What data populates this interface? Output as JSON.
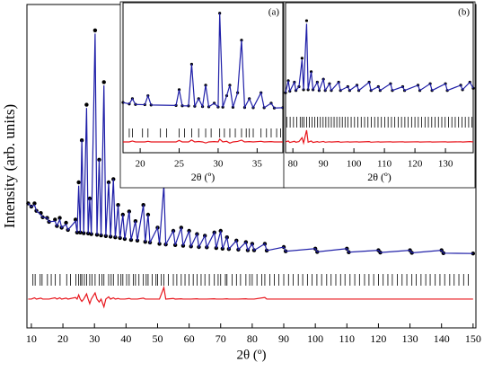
{
  "chart_data": [
    {
      "type": "rietveld",
      "xlabel": "2θ (º)",
      "ylabel": "Intensity (arb. units)",
      "xlim": [
        8.6,
        150.9
      ],
      "ylim": [
        0,
        100
      ],
      "xticks": [
        10,
        20,
        30,
        40,
        50,
        60,
        70,
        80,
        90,
        100,
        110,
        120,
        130,
        140,
        150
      ],
      "x": [
        9,
        10,
        11,
        11.6,
        13,
        13.6,
        15,
        15.6,
        17.5,
        18.1,
        19,
        19.6,
        21,
        21.6,
        24,
        24.5,
        25,
        25.5,
        26,
        26.6,
        27.5,
        28,
        28.5,
        29,
        30.2,
        30.8,
        31.5,
        32.1,
        33,
        33.6,
        34.5,
        35.1,
        36,
        36.6,
        37.5,
        38.1,
        39,
        39.6,
        41,
        41.6,
        43,
        43.6,
        45.5,
        46.1,
        47,
        47.6,
        50,
        50.6,
        52,
        52.6,
        55,
        55.6,
        57.5,
        58.1,
        60,
        60.6,
        62.5,
        63.1,
        65,
        65.6,
        68,
        68.6,
        70,
        70.6,
        72,
        72.6,
        75,
        75.6,
        78,
        78.6,
        80,
        80.6,
        84,
        84.6,
        90,
        90.6,
        100,
        100.6,
        110,
        110.6,
        120,
        120.6,
        130,
        130.6,
        140,
        140.6,
        150
      ],
      "series": [
        {
          "style": "points",
          "color": "#000000",
          "values": [
            38.5,
            37.5,
            38.5,
            36.2,
            35.5,
            34.2,
            34,
            32.8,
            33.5,
            31.5,
            34,
            31,
            32.5,
            30.3,
            33.5,
            29.5,
            45,
            29.5,
            58,
            29.3,
            69,
            29.2,
            40,
            29,
            92,
            28.8,
            52,
            28.6,
            76,
            28.4,
            45,
            28.2,
            46,
            28,
            38,
            27.8,
            35,
            27.5,
            36,
            27.2,
            33,
            27,
            38,
            26.6,
            35,
            26.4,
            31,
            26,
            46,
            25.8,
            30,
            25.6,
            31,
            25.4,
            30,
            25.2,
            29,
            25,
            28.5,
            24.9,
            29.5,
            24.7,
            30,
            24.5,
            28,
            24.4,
            27,
            24.2,
            26.5,
            24,
            26,
            24,
            26,
            23.9,
            25,
            23.7,
            24.5,
            23.5,
            24.5,
            23.4,
            24,
            23.3,
            24,
            23.2,
            24,
            23.1,
            23
          ]
        },
        {
          "style": "line",
          "color": "#1f1fa8",
          "values": [
            38.5,
            37.5,
            38,
            36.2,
            35,
            34.2,
            34,
            32.8,
            33,
            31.5,
            33.5,
            31,
            32,
            30.3,
            33,
            29.5,
            44,
            29.5,
            58,
            29.3,
            68,
            29.2,
            40,
            29,
            91,
            28.8,
            52,
            28.6,
            75,
            28.4,
            45,
            28.2,
            46,
            28,
            38,
            27.8,
            35,
            27.5,
            36,
            27.2,
            33,
            27,
            38,
            26.6,
            35,
            26.4,
            31,
            26,
            44,
            25.8,
            30,
            25.6,
            31,
            25.4,
            30,
            25.2,
            29,
            25,
            28.5,
            24.9,
            29.5,
            24.7,
            30,
            24.5,
            28,
            24.4,
            27,
            24.2,
            26.5,
            24,
            26,
            24,
            26,
            23.9,
            25,
            23.7,
            24.5,
            23.5,
            24.5,
            23.4,
            24,
            23.3,
            24,
            23.2,
            24,
            23.1,
            23
          ]
        },
        {
          "style": "line",
          "color": "#e8141b",
          "values": [
            8.9,
            8.9,
            9.3,
            8.9,
            9.2,
            8.9,
            8.9,
            8.9,
            9.3,
            8.9,
            9.3,
            8.9,
            9.2,
            8.9,
            9.4,
            8.9,
            10.2,
            8.9,
            8.2,
            8.9,
            10.5,
            8.9,
            7.5,
            8.9,
            10.8,
            8.9,
            8,
            8.9,
            6.5,
            8.9,
            9.6,
            8.9,
            9.3,
            8.9,
            9.1,
            8.9,
            8.9,
            8.9,
            9.1,
            8.9,
            8.9,
            8.9,
            9.2,
            8.9,
            8.9,
            8.9,
            8.9,
            8.9,
            12.5,
            8.9,
            9.1,
            8.9,
            9,
            8.9,
            8.9,
            8.9,
            9,
            8.9,
            8.9,
            8.9,
            9,
            8.9,
            8.9,
            8.9,
            9,
            8.9,
            8.9,
            8.9,
            9,
            8.9,
            8.9,
            8.9,
            9.4,
            8.9,
            8.9,
            8.9,
            8.9,
            8.9,
            8.9,
            8.9,
            8.9,
            8.9,
            8.9,
            8.9,
            8.9,
            8.9,
            8.9
          ]
        }
      ],
      "reflections": [
        10.5,
        11.2,
        12.8,
        13.4,
        15.1,
        16.3,
        17.6,
        19.1,
        21.2,
        22.4,
        24.1,
        25,
        25.6,
        26,
        26.8,
        27.5,
        28.5,
        29.2,
        30.2,
        31.5,
        32.4,
        33,
        34.5,
        35.3,
        36,
        37.5,
        38.4,
        39,
        40.2,
        41,
        42.3,
        43,
        44.1,
        45.5,
        46.4,
        47,
        48.3,
        49.5,
        50,
        51.2,
        52,
        53.4,
        55,
        56.1,
        57.5,
        58.7,
        60,
        61.3,
        62.5,
        63.8,
        65,
        66.4,
        68,
        69.2,
        70,
        71.5,
        72,
        73.6,
        75,
        76.3,
        78,
        79.2,
        80,
        81.5,
        83,
        84,
        85.6,
        87,
        88.4,
        90,
        91.5,
        93,
        94.6,
        96,
        97.5,
        99,
        100.5,
        102,
        103.6,
        105,
        106.5,
        108,
        109.4,
        111,
        112.5,
        114,
        115.6,
        117,
        118.5,
        120,
        121.5,
        123,
        124.4,
        126,
        127.5,
        129,
        130.6,
        132,
        133.5,
        135,
        136.4,
        138,
        139.5,
        141,
        142.6,
        144,
        145.5,
        147,
        148.5
      ],
      "reflections_color": "#000000"
    },
    {
      "type": "rietveld",
      "panel_label": "(a)",
      "xlabel": "2θ (º)",
      "xlim": [
        17.8,
        38.3
      ],
      "ylim": [
        0,
        100
      ],
      "xticks": [
        20,
        25,
        30,
        35
      ],
      "x": [
        17.8,
        18.6,
        19,
        19.4,
        20.6,
        21,
        21.4,
        24.6,
        25,
        25.4,
        26.2,
        26.6,
        27,
        27.5,
        28,
        28.4,
        28.8,
        29.5,
        30,
        30.2,
        30.6,
        31.1,
        31.5,
        31.9,
        32.5,
        33,
        33.4,
        34,
        34.5,
        35.5,
        35.9,
        36.8,
        37.2,
        38.3
      ],
      "series": [
        {
          "style": "points",
          "color": "#000000",
          "values": [
            33.5,
            32.5,
            36,
            32.2,
            32,
            38,
            31.8,
            31.5,
            42,
            31.3,
            31.2,
            59,
            31,
            36,
            30.8,
            45,
            30.6,
            33,
            30.5,
            93,
            30.4,
            38,
            45,
            30.3,
            40,
            75,
            30.2,
            36,
            30,
            40,
            30,
            33,
            29.8,
            30
          ]
        },
        {
          "style": "line",
          "color": "#1f1fa8",
          "values": [
            33.5,
            32.5,
            36,
            32.2,
            32,
            38,
            31.8,
            31.5,
            42,
            31.3,
            31.2,
            59,
            31,
            36,
            30.8,
            45,
            30.6,
            33,
            30.5,
            93,
            30.4,
            38,
            45,
            30.3,
            40,
            75,
            30.2,
            36,
            30,
            40,
            30,
            33,
            29.8,
            30
          ]
        },
        {
          "style": "line",
          "color": "#e8141b",
          "values": [
            7.2,
            7.2,
            7.8,
            7.2,
            7.2,
            7.6,
            7.2,
            7.2,
            8.2,
            7.2,
            7.2,
            8.5,
            7.2,
            7.5,
            7.2,
            6.5,
            7.2,
            7.4,
            7.2,
            9,
            7.2,
            7.6,
            6.4,
            7.2,
            7.5,
            8.4,
            7.2,
            7.4,
            7.2,
            7.6,
            7.2,
            7.4,
            7.2,
            7.2
          ]
        }
      ],
      "reflections": [
        18.6,
        19,
        20.3,
        21,
        22.6,
        23.4,
        25,
        25.7,
        26.6,
        27.5,
        28.4,
        29.1,
        30.2,
        30.8,
        31.5,
        32.2,
        33,
        33.6,
        34,
        34.5,
        35.5,
        36.2,
        36.8,
        37.5,
        38
      ],
      "reflections_color": "#000000"
    },
    {
      "type": "rietveld",
      "panel_label": "(b)",
      "xlabel": "2θ (º)",
      "xlim": [
        77.6,
        139.1
      ],
      "ylim": [
        0,
        100
      ],
      "xticks": [
        80,
        90,
        100,
        110,
        120,
        130
      ],
      "x": [
        77.6,
        78.5,
        79,
        80.5,
        81,
        82,
        83,
        83.5,
        84.5,
        85,
        86,
        86.6,
        88,
        88.6,
        90,
        90.6,
        92,
        92.6,
        95,
        95.6,
        98,
        98.6,
        101,
        101.6,
        105,
        105.6,
        108,
        108.6,
        112,
        112.6,
        116,
        116.6,
        121,
        121.6,
        125,
        125.6,
        130,
        130.6,
        135,
        135.6,
        138,
        139.1
      ],
      "series": [
        {
          "style": "points",
          "color": "#000000",
          "values": [
            40,
            48,
            41,
            47,
            41.5,
            44,
            63,
            42,
            88,
            42,
            54,
            42,
            47,
            41.5,
            49,
            41.5,
            46,
            41.5,
            47,
            41.5,
            44,
            41.5,
            45,
            41.5,
            47,
            41.5,
            44,
            41.5,
            46,
            41.5,
            44,
            41.5,
            45,
            41.5,
            46,
            41.5,
            46,
            41.5,
            45,
            42,
            47,
            43
          ]
        },
        {
          "style": "line",
          "color": "#1f1fa8",
          "values": [
            40,
            48,
            41,
            47,
            41.5,
            44,
            62,
            42,
            86,
            42,
            54,
            42,
            47,
            41.5,
            49,
            41.5,
            46,
            41.5,
            47,
            41.5,
            44,
            41.5,
            45,
            41.5,
            47,
            41.5,
            44,
            41.5,
            46,
            41.5,
            44,
            41.5,
            45,
            41.5,
            46,
            41.5,
            46,
            41.5,
            45,
            42,
            47,
            43
          ]
        },
        {
          "style": "line",
          "color": "#e8141b",
          "values": [
            7.2,
            7.8,
            6.8,
            7.6,
            7,
            7.4,
            10,
            6.5,
            15,
            7,
            7.8,
            6.8,
            7.4,
            7,
            7.5,
            7,
            7.3,
            7.1,
            7.4,
            7,
            7.3,
            7.1,
            7.3,
            7.1,
            7.4,
            7,
            7.3,
            7.1,
            7.3,
            7.1,
            7.3,
            7.1,
            7.3,
            7.1,
            7.3,
            7.1,
            7.3,
            7.1,
            7.3,
            7.1,
            7.4,
            7.2
          ]
        }
      ],
      "reflections": [
        78,
        79.1,
        80.2,
        81.3,
        82.4,
        83,
        83.6,
        84.5,
        85.4,
        86.3,
        87.2,
        88.1,
        89,
        89.9,
        90.8,
        91.7,
        92.6,
        93.5,
        94.4,
        95.3,
        96.2,
        97.1,
        98,
        99.1,
        100.2,
        101.3,
        102.4,
        103.5,
        104.6,
        105.7,
        106.8,
        107.9,
        109,
        110.1,
        111.2,
        112.3,
        113.4,
        114.5,
        115.6,
        116.7,
        117.8,
        118.9,
        120,
        121.1,
        122.2,
        123.3,
        124.4,
        125.5,
        126.6,
        127.7,
        128.8,
        129.9,
        131,
        132.1,
        133.2,
        134.3,
        135.4,
        136.5,
        137.6,
        138.7
      ],
      "reflections_color": "#000000"
    }
  ]
}
